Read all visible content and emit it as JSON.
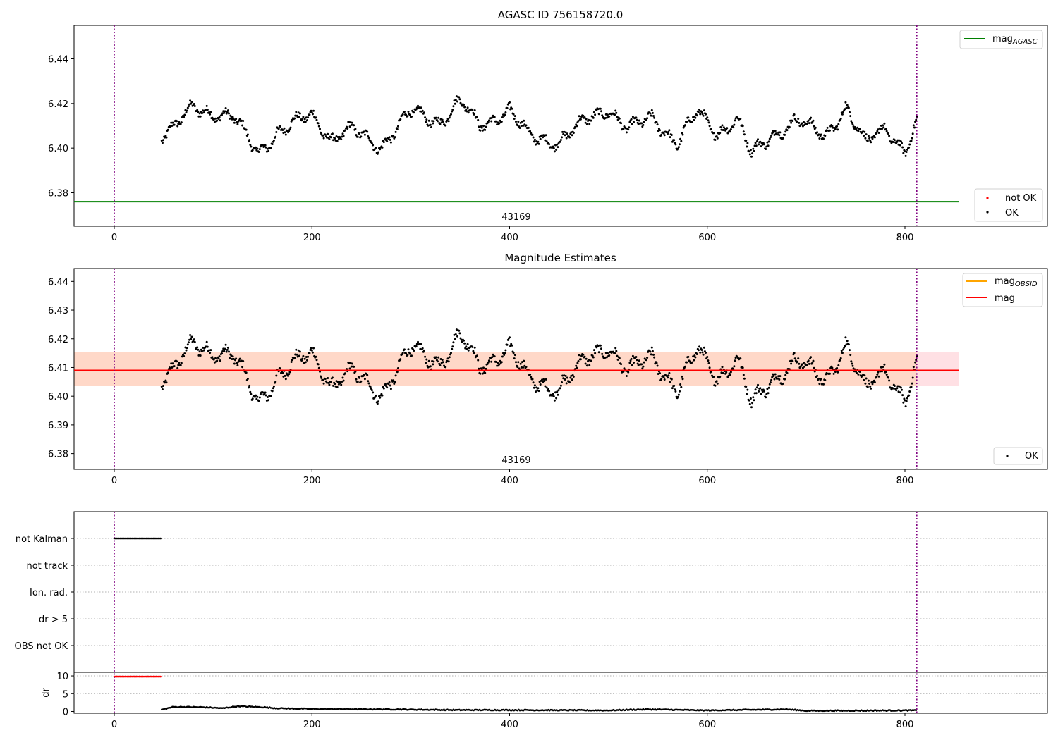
{
  "figure": {
    "panel1_title": "AGASC ID 756158720.0",
    "panel2_title": "Magnitude Estimates",
    "obsid_label": "43169"
  },
  "legend": {
    "agasc_main": "mag",
    "agasc_sub": "AGASC",
    "not_ok": "not OK",
    "ok": "OK",
    "obsid_main": "mag",
    "obsid_sub": "OBSID",
    "mag": "mag"
  },
  "colors": {
    "ok_points": "#000000",
    "not_ok_points": "#ff0000",
    "mag_agasc": "#008000",
    "mag_obsid": "#ffa500",
    "mag": "#ff0000",
    "band_inner": "#ffd8c8",
    "band_outer": "#ffe0e4",
    "interval_lines": "#800080"
  },
  "chart_data": [
    {
      "type": "scatter",
      "title": "AGASC ID 756158720.0",
      "xlim": [
        -40,
        940
      ],
      "ylim": [
        6.365,
        6.455
      ],
      "x_ticks": [
        0,
        200,
        400,
        600,
        800
      ],
      "y_ticks": [
        6.38,
        6.4,
        6.42,
        6.44
      ],
      "y_tick_labels": [
        "6.38",
        "6.40",
        "6.42",
        "6.44"
      ],
      "x_range_points": [
        48,
        812
      ],
      "mag_agasc": 6.376,
      "interval_lines_x": [
        0,
        812
      ],
      "legend": [
        "mag_AGASC",
        "not OK",
        "OK"
      ],
      "series_shape": {
        "mean": 6.4095,
        "segments": [
          [
            48,
            6.406
          ],
          [
            60,
            6.409
          ],
          [
            80,
            6.418
          ],
          [
            100,
            6.416
          ],
          [
            120,
            6.414
          ],
          [
            145,
            6.398
          ],
          [
            165,
            6.407
          ],
          [
            200,
            6.415
          ],
          [
            220,
            6.404
          ],
          [
            240,
            6.408
          ],
          [
            270,
            6.401
          ],
          [
            300,
            6.416
          ],
          [
            330,
            6.412
          ],
          [
            350,
            6.421
          ],
          [
            370,
            6.41
          ],
          [
            400,
            6.417
          ],
          [
            420,
            6.405
          ],
          [
            450,
            6.403
          ],
          [
            480,
            6.413
          ],
          [
            500,
            6.418
          ],
          [
            520,
            6.408
          ],
          [
            545,
            6.414
          ],
          [
            570,
            6.402
          ],
          [
            590,
            6.416
          ],
          [
            610,
            6.407
          ],
          [
            630,
            6.413
          ],
          [
            645,
            6.397
          ],
          [
            665,
            6.406
          ],
          [
            690,
            6.412
          ],
          [
            720,
            6.406
          ],
          [
            740,
            6.418
          ],
          [
            760,
            6.402
          ],
          [
            780,
            6.41
          ],
          [
            800,
            6.398
          ],
          [
            812,
            6.41
          ]
        ]
      }
    },
    {
      "type": "scatter",
      "title": "Magnitude Estimates",
      "xlim": [
        -40,
        940
      ],
      "ylim": [
        6.3745,
        6.4445
      ],
      "x_ticks": [
        0,
        200,
        400,
        600,
        800
      ],
      "y_ticks": [
        6.38,
        6.39,
        6.4,
        6.41,
        6.42,
        6.43,
        6.44
      ],
      "y_tick_labels": [
        "6.38",
        "6.39",
        "6.40",
        "6.41",
        "6.42",
        "6.43",
        "6.44"
      ],
      "mag": 6.409,
      "mag_band": [
        6.4035,
        6.4155
      ],
      "mag_obsid": 6.409,
      "interval_lines_x": [
        0,
        812
      ],
      "legend": [
        "mag_OBSID",
        "mag",
        "OK"
      ]
    },
    {
      "type": "scatter",
      "title": "",
      "categories": [
        "not Kalman",
        "not track",
        "Ion. rad.",
        "dr > 5",
        "OBS not OK"
      ],
      "flagged": {
        "not Kalman": [
          0,
          48
        ]
      },
      "xlim": [
        -40,
        940
      ],
      "interval_lines_x": [
        0,
        812
      ]
    },
    {
      "type": "scatter",
      "title": "",
      "ylabel": "dr",
      "xlim": [
        -40,
        940
      ],
      "ylim": [
        -0.5,
        11
      ],
      "x_ticks": [
        0,
        200,
        400,
        600,
        800
      ],
      "y_ticks": [
        0,
        5,
        10
      ],
      "red_points_x_range": [
        0,
        48
      ],
      "red_points_y": 9.8,
      "dr_shape": [
        [
          48,
          0.5
        ],
        [
          60,
          1.3
        ],
        [
          90,
          1.2
        ],
        [
          110,
          0.9
        ],
        [
          125,
          1.5
        ],
        [
          150,
          1.2
        ],
        [
          165,
          0.9
        ],
        [
          200,
          0.7
        ],
        [
          280,
          0.6
        ],
        [
          350,
          0.4
        ],
        [
          400,
          0.4
        ],
        [
          500,
          0.3
        ],
        [
          540,
          0.6
        ],
        [
          600,
          0.3
        ],
        [
          680,
          0.6
        ],
        [
          700,
          0.2
        ],
        [
          812,
          0.3
        ]
      ],
      "interval_lines_x": [
        0,
        812
      ]
    }
  ]
}
